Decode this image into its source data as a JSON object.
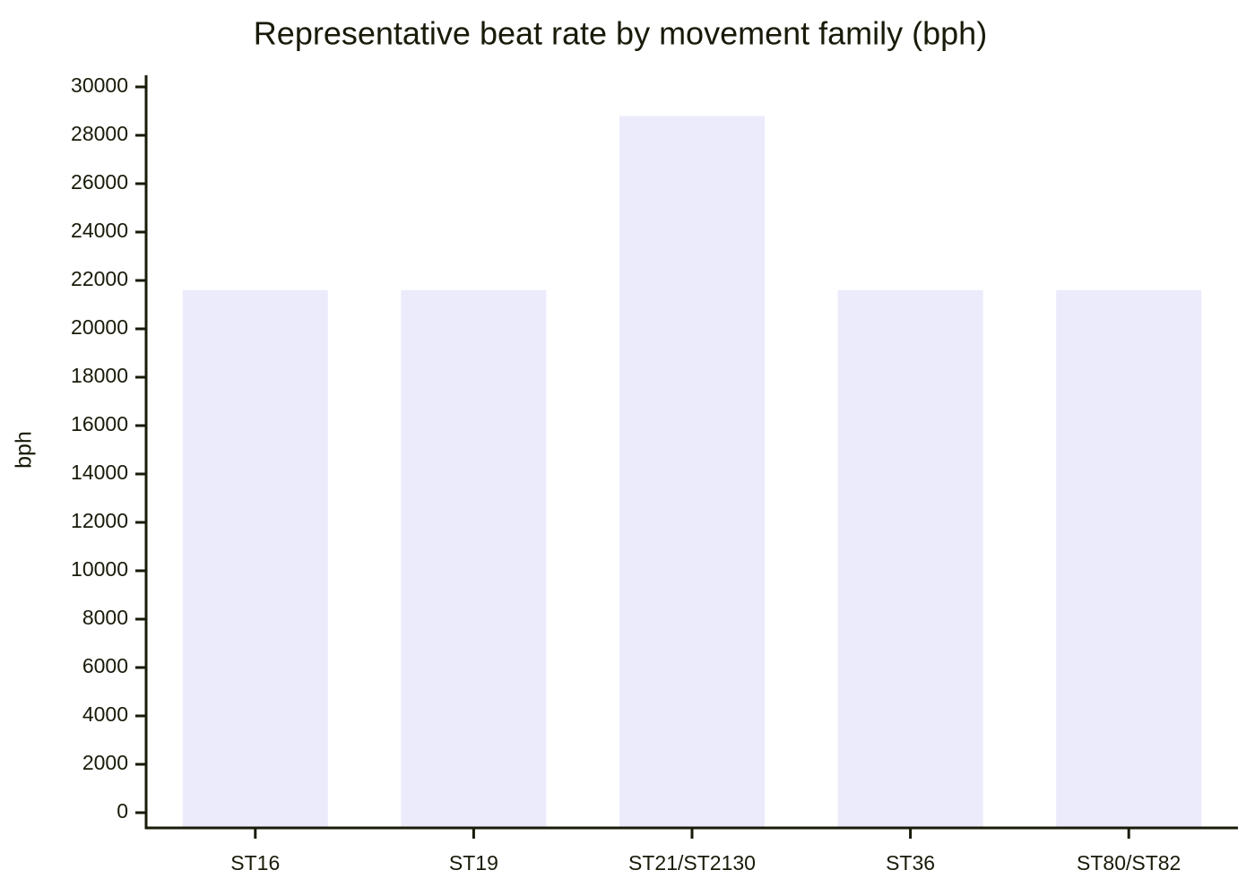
{
  "chart_data": {
    "type": "bar",
    "title": "Representative beat rate by movement family (bph)",
    "y_label": "bph",
    "categories": [
      "ST16",
      "ST19",
      "ST21/ST2130",
      "ST36",
      "ST80/ST82"
    ],
    "values": [
      21600,
      21600,
      28800,
      21600,
      21600
    ],
    "color": "#ebebfc",
    "ylim": [
      0,
      30000
    ],
    "yticks": [
      0,
      2000,
      4000,
      6000,
      8000,
      10000,
      12000,
      14000,
      16000,
      18000,
      20000,
      22000,
      24000,
      26000,
      28000,
      30000
    ],
    "grid": false
  }
}
